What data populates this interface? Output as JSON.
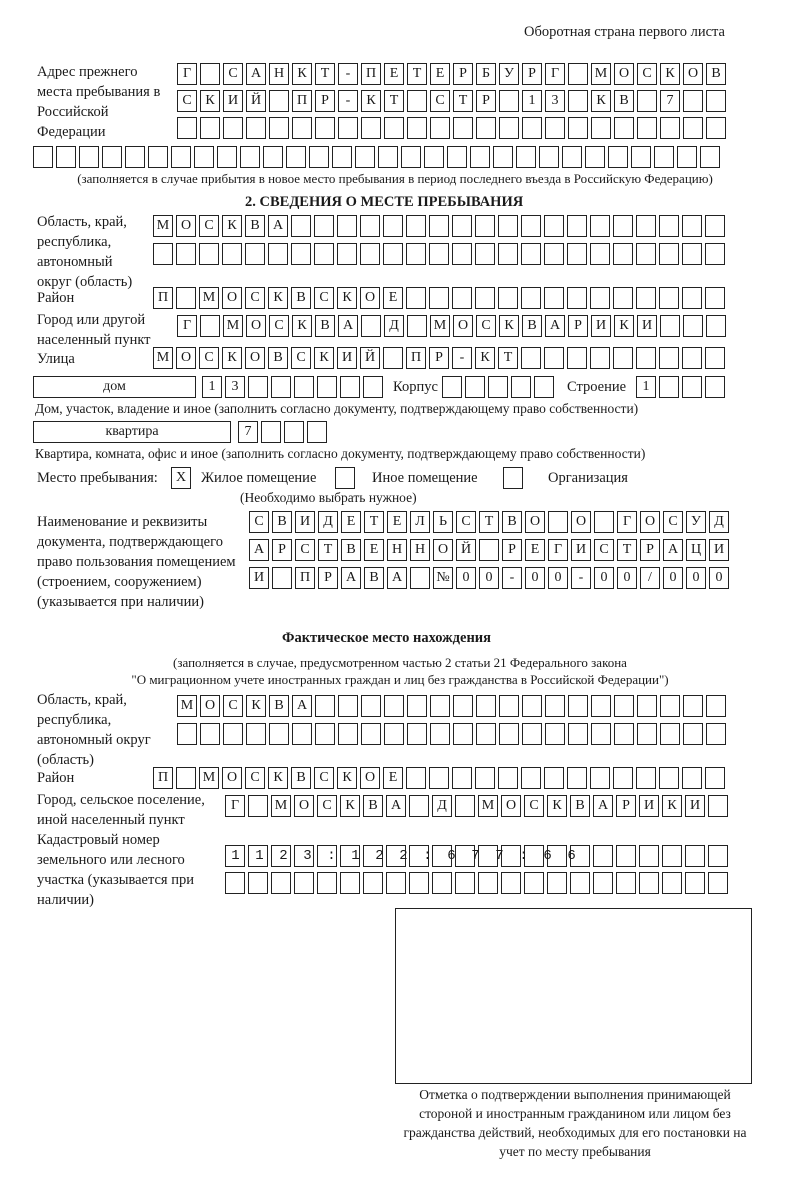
{
  "header": "Оборотная страна первого листа",
  "prev_address": {
    "label": "Адрес прежнего места пребывания в Российской Федерации",
    "rows": [
      "Г САНКТ-ПЕТЕРБУРГ МОСКОВ",
      "СКИЙ ПР-КТ СТР 13 КВ 7",
      "",
      ""
    ],
    "note": "(заполняется в случае прибытия в новое место пребывания в период последнего въезда в Российскую Федерацию)"
  },
  "section2": {
    "title": "2. СВЕДЕНИЯ О МЕСТЕ ПРЕБЫВАНИЯ",
    "region_label": "Область, край, республика, автономный округ (область)",
    "region_rows": [
      "МОСКВА",
      ""
    ],
    "district_label": "Район",
    "district": "П МОСКВСКОЕ",
    "city_label": "Город или другой населенный пункт",
    "city": "Г МОСКВА Д МОСКВАРИКИ",
    "street_label": "Улица",
    "street": "МОСКОВСКИЙ ПР-КТ",
    "house_type": "дом",
    "house_number": "13",
    "korpus_label": "Корпус",
    "korpus": "",
    "building_label": "Строение",
    "building": "1",
    "house_note": "Дом, участок, владение и иное (заполнить согласно документу, подтверждающему право собственности)",
    "apt_type": "квартира",
    "apt_number": "7",
    "apt_note": "Квартира, комната, офис и иное (заполнить согласно документу, подтверждающему право собственности)",
    "stay_label": "Место пребывания:",
    "stay_options": [
      {
        "label": "Жилое помещение",
        "mark": "X"
      },
      {
        "label": "Иное помещение",
        "mark": ""
      },
      {
        "label": "Организация",
        "mark": ""
      }
    ],
    "stay_note": "(Необходимо выбрать нужное)",
    "doc_label": "Наименование и реквизиты документа, подтверждающего право пользования помещением (строением, сооружением) (указывается при наличии)",
    "doc_rows": [
      "СВИДЕТЕЛЬСТВО О ГОСУД",
      "АРСТВЕННОЙ РЕГИСТРАЦИ",
      "И ПРАВА №00-00-00/000"
    ]
  },
  "actual": {
    "title": "Фактическое место нахождения",
    "note1": "(заполняется в случае, предусмотренном частью 2 статьи 21 Федерального закона",
    "note2": "\"О миграционном учете иностранных граждан и лиц без гражданства в Российской Федерации\")",
    "region_label": "Область, край, республика, автономный округ (область)",
    "region_rows": [
      "МОСКВА",
      ""
    ],
    "district_label": "Район",
    "district": "П МОСКВСКОЕ",
    "city_label": "Город, сельское поселение, иной населенный пункт",
    "city": "Г МОСКВА Д МОСКВАРИКИ",
    "cadastral_label": "Кадастровый номер земельного или лесного участка (указывается при наличии)",
    "cadastral_rows": [
      "1123:122:677:66",
      ""
    ]
  },
  "stamp": {
    "caption": "Отметка о подтверждении выполнения принимающей стороной и иностранным гражданином или лицом без гражданства действий, необходимых для его постановки на учет по месту пребывания"
  }
}
